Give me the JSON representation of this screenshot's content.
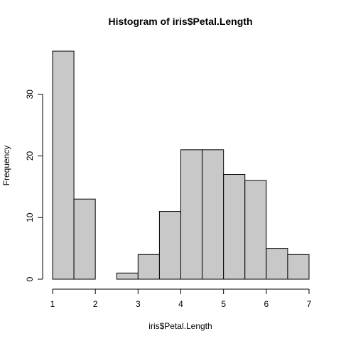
{
  "chart_data": {
    "type": "bar",
    "title": "Histogram of iris$Petal.Length",
    "xlabel": "iris$Petal.Length",
    "ylabel": "Frequency",
    "bins": [
      {
        "x0": 1.0,
        "x1": 1.5,
        "count": 37
      },
      {
        "x0": 1.5,
        "x1": 2.0,
        "count": 13
      },
      {
        "x0": 2.0,
        "x1": 2.5,
        "count": 0
      },
      {
        "x0": 2.5,
        "x1": 3.0,
        "count": 1
      },
      {
        "x0": 3.0,
        "x1": 3.5,
        "count": 4
      },
      {
        "x0": 3.5,
        "x1": 4.0,
        "count": 11
      },
      {
        "x0": 4.0,
        "x1": 4.5,
        "count": 21
      },
      {
        "x0": 4.5,
        "x1": 5.0,
        "count": 21
      },
      {
        "x0": 5.0,
        "x1": 5.5,
        "count": 17
      },
      {
        "x0": 5.5,
        "x1": 6.0,
        "count": 16
      },
      {
        "x0": 6.0,
        "x1": 6.5,
        "count": 5
      },
      {
        "x0": 6.5,
        "x1": 7.0,
        "count": 4
      }
    ],
    "xlim": [
      1,
      7
    ],
    "ylim": [
      0,
      37
    ],
    "x_ticks": [
      1,
      2,
      3,
      4,
      5,
      6,
      7
    ],
    "y_ticks": [
      0,
      10,
      20,
      30
    ],
    "bar_color": "#c8c8c8",
    "grid": false,
    "legend": "none"
  }
}
